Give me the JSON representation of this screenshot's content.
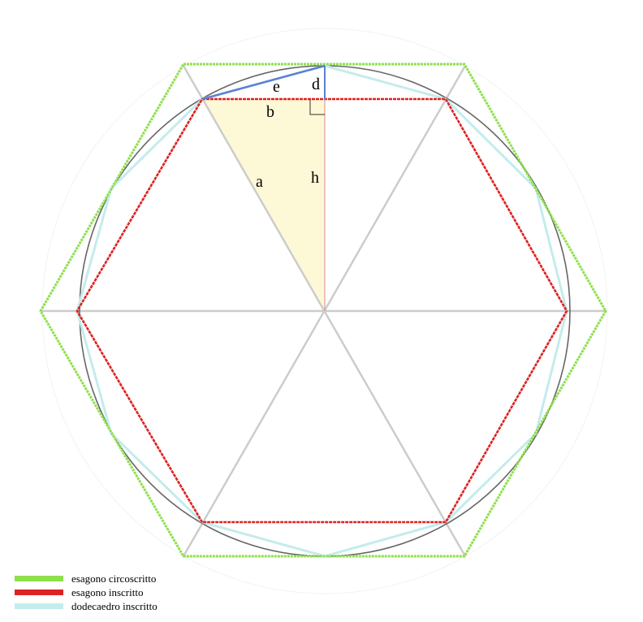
{
  "labels": {
    "a": "a",
    "b": "b",
    "d": "d",
    "e": "e",
    "h": "h"
  },
  "colors": {
    "circumscribed_hexagon": "#8ee04c",
    "inscribed_hexagon": "#dd2222",
    "inscribed_dodecagon": "#c4ecec",
    "circle": "#666666",
    "spokes": "#cccccc",
    "triangle_fill": "#fdf8d6",
    "blue_segments": "#5b7fd4"
  },
  "legend": [
    {
      "label": "esagono circoscritto",
      "color": "#8ee04c"
    },
    {
      "label": "esagono inscritto",
      "color": "#dd2222"
    },
    {
      "label": "dodecaedro inscritto",
      "color": "#c4ecec"
    }
  ]
}
